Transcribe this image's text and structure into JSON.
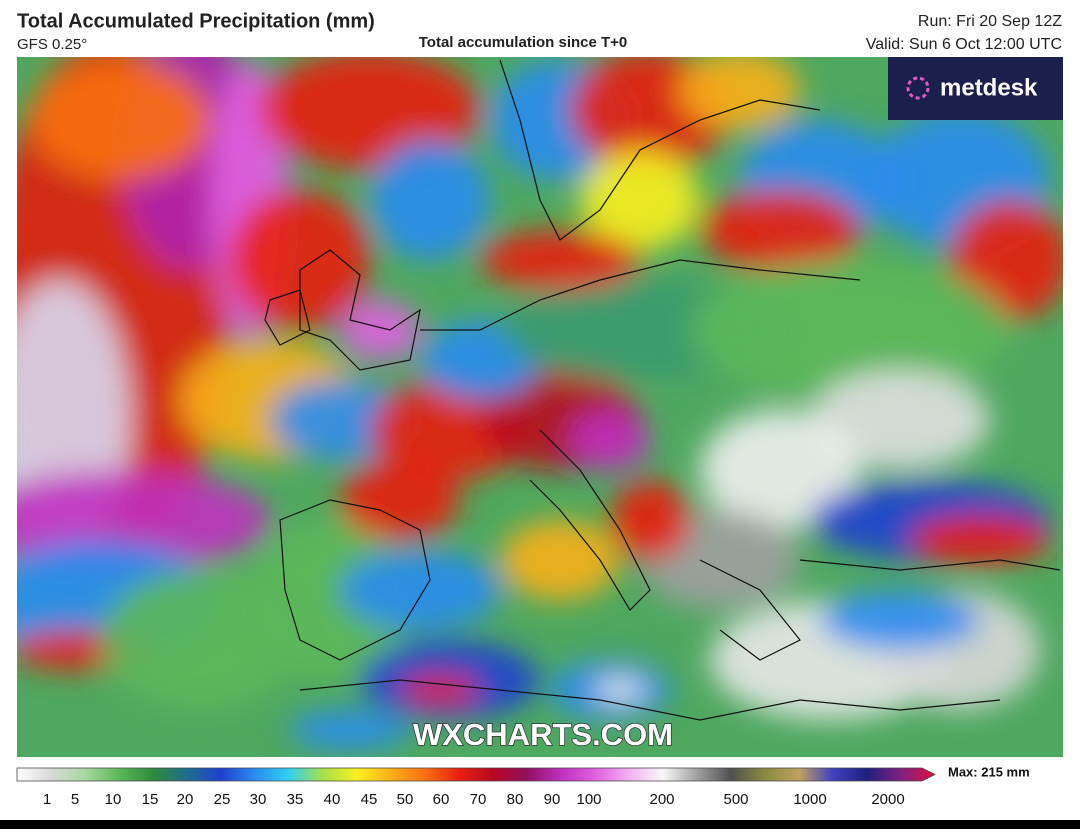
{
  "header": {
    "title": "Total Accumulated Precipitation (mm)",
    "model": "GFS 0.25°",
    "subtitle": "Total accumulation since T+0",
    "run": "Run: Fri 20 Sep 12Z",
    "valid": "Valid: Sun 6 Oct 12:00 UTC"
  },
  "logo": "metdesk",
  "watermark": "WXCHARTS.COM",
  "legend": {
    "max_label": "Max: 215 mm",
    "ticks": [
      "1",
      "5",
      "10",
      "15",
      "20",
      "25",
      "30",
      "35",
      "40",
      "45",
      "50",
      "60",
      "70",
      "80",
      "90",
      "100",
      "200",
      "500",
      "1000",
      "2000"
    ],
    "colors": [
      "#ffffff",
      "#d8d8d8",
      "#a8d8a0",
      "#5cb85a",
      "#2e8b3a",
      "#1f6e8c",
      "#2040d0",
      "#2a8cf0",
      "#30d0f0",
      "#a8e048",
      "#f8f020",
      "#f8b018",
      "#f87010",
      "#e82010",
      "#b80820",
      "#901060",
      "#c030c0",
      "#e060e0",
      "#f0b0f0",
      "#f8f8f8",
      "#a0a0a0",
      "#505050",
      "#8a8a40",
      "#c0a060",
      "#4040c0",
      "#202080",
      "#802080",
      "#e01040"
    ]
  }
}
